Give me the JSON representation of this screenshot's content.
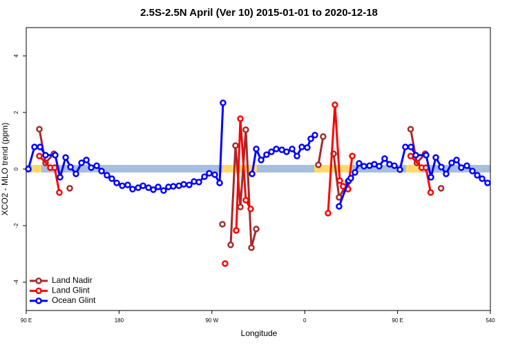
{
  "chart_data": {
    "type": "line",
    "title": "2.5S-2.5N April (Ver 10)   2015-01-01 to 2020-12-18",
    "xlabel": "Longitude",
    "ylabel": "XCO2 - MLO trend (ppm)",
    "xlim": [
      90,
      540
    ],
    "ylim": [
      -5,
      5
    ],
    "xticks": [
      {
        "value": 90,
        "label": "90 E"
      },
      180,
      {
        "value": 270,
        "label": "90 W"
      },
      {
        "value": 360,
        "label": "0"
      },
      {
        "value": 450,
        "label": "90 E"
      },
      540
    ],
    "yticks": [
      -4,
      -2,
      0,
      2,
      4
    ],
    "legend": "bottom-left",
    "series": [
      {
        "name": "Land Nadir",
        "color": "#a52a2a",
        "x": [
          102.7,
          108.7,
          116.8,
          null,
          132.2,
          null,
          280.2,
          null,
          288.2,
          292.9,
          297.6,
          302.9,
          308.3,
          313.0,
          null,
          373.2,
          377.9,
          null,
          388.0,
          393.3,
          402.0,
          null,
          462.7,
          468.7,
          476.8,
          null,
          492.2
        ],
        "values": [
          1.41,
          0.22,
          0.54,
          null,
          -0.68,
          null,
          -1.95,
          null,
          -2.68,
          0.83,
          -1.34,
          1.39,
          -2.78,
          -2.12,
          null,
          0.15,
          1.15,
          null,
          0.54,
          -1.0,
          -0.44,
          null,
          1.41,
          0.22,
          0.54,
          null,
          -0.68
        ]
      },
      {
        "name": "Land Glint",
        "color": "#ff0000",
        "x": [
          102.7,
          113.4,
          117.5,
          122.1,
          null,
          282.8,
          null,
          293.6,
          297.6,
          302.9,
          307.6,
          null,
          382.6,
          389.3,
          394.0,
          397.3,
          402.0,
          406.1,
          null,
          462.7,
          473.4,
          477.5,
          482.1
        ],
        "values": [
          0.46,
          0.05,
          0.05,
          -0.83,
          null,
          -3.34,
          null,
          -2.17,
          1.78,
          -1.1,
          -1.41,
          null,
          -1.56,
          2.27,
          -0.41,
          -0.61,
          -0.71,
          0.46,
          null,
          0.46,
          0.05,
          0.05,
          -0.83
        ]
      },
      {
        "name": "Ocean Glint",
        "color": "#0000ff",
        "x": [
          92.0,
          98.0,
          103.4,
          108.7,
          118.1,
          122.8,
          128.2,
          132.9,
          138.2,
          143.6,
          148.3,
          153.0,
          158.3,
          163.0,
          168.3,
          173.0,
          177.7,
          183.1,
          188.4,
          193.1,
          198.5,
          203.2,
          208.5,
          213.2,
          217.9,
          223.2,
          227.9,
          232.6,
          238.0,
          242.7,
          248.0,
          252.7,
          257.4,
          262.8,
          267.4,
          272.8,
          277.5,
          280.8,
          null,
          309.0,
          313.0,
          317.7,
          323.0,
          327.7,
          332.4,
          337.8,
          342.4,
          347.8,
          352.5,
          357.2,
          362.5,
          365.9,
          369.9,
          null,
          393.3,
          402.7,
          404.7,
          408.7,
          412.7,
          417.4,
          422.8,
          427.5,
          432.2,
          437.5,
          442.2,
          446.9,
          452.3,
          457.6,
          463.0,
          467.7,
          477.7,
          482.4,
          487.1,
          492.4,
          497.1,
          502.5,
          507.2,
          511.8,
          517.2,
          522.6,
          527.3,
          532.0,
          537.3
        ],
        "values": [
          0,
          0.78,
          0.78,
          0.49,
          0.49,
          -0.29,
          0.41,
          0.07,
          -0.17,
          0.22,
          0.32,
          0.05,
          0.12,
          -0.07,
          -0.22,
          -0.34,
          -0.49,
          -0.59,
          -0.56,
          -0.71,
          -0.66,
          -0.59,
          -0.66,
          -0.73,
          -0.63,
          -0.76,
          -0.63,
          -0.61,
          -0.59,
          -0.54,
          -0.56,
          -0.44,
          -0.46,
          -0.27,
          -0.15,
          -0.2,
          -0.49,
          2.34,
          null,
          -0.17,
          0.71,
          0.32,
          0.51,
          0.61,
          0.71,
          0.68,
          0.61,
          0.71,
          0.46,
          0.78,
          0.76,
          1.07,
          1.2,
          null,
          -1.32,
          -0.41,
          -0.32,
          -0.12,
          0.2,
          0.1,
          0.12,
          0.17,
          0.1,
          0.37,
          0.17,
          0.12,
          -0.02,
          0.78,
          0.78,
          0.49,
          0.49,
          -0.29,
          0.41,
          0.07,
          -0.17,
          0.22,
          0.32,
          0.05,
          0.12,
          -0.07,
          -0.22,
          -0.34,
          -0.49
        ]
      }
    ]
  }
}
